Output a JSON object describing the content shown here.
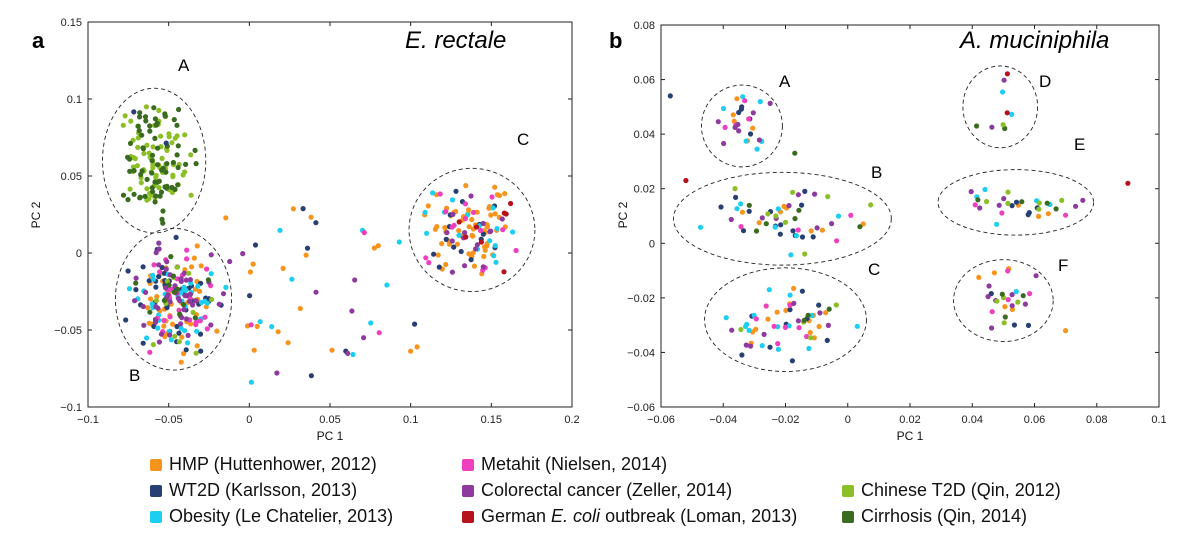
{
  "panels": [
    {
      "label": "a",
      "title": "E. rectale",
      "xlabel": "PC 1",
      "ylabel": "PC 2",
      "xticks": [
        "−0.1",
        "−0.05",
        "0",
        "0.05",
        "0.1",
        "0.15",
        "0.2"
      ],
      "yticks": [
        "0.15",
        "0.1",
        "0.05",
        "0",
        "−0.05",
        "−0.1"
      ],
      "cluster_labels": [
        "A",
        "B",
        "C"
      ]
    },
    {
      "label": "b",
      "title": "A. muciniphila",
      "xlabel": "PC 1",
      "ylabel": "PC 2",
      "xticks": [
        "−0.06",
        "−0.04",
        "−0.02",
        "0",
        "0.02",
        "0.04",
        "0.06",
        "0.08",
        "0.1"
      ],
      "yticks": [
        "0.08",
        "0.06",
        "0.04",
        "0.02",
        "0",
        "−0.02",
        "−0.04",
        "−0.06"
      ],
      "cluster_labels": [
        "A",
        "B",
        "C",
        "D",
        "E",
        "F"
      ]
    }
  ],
  "legend": [
    {
      "label": "HMP (Huttenhower, 2012)",
      "color": "#f7941d"
    },
    {
      "label": "WT2D (Karlsson, 2013)",
      "color": "#283f73"
    },
    {
      "label": "Obesity (Le Chatelier, 2013)",
      "color": "#1ccef0"
    },
    {
      "label": "Metahit (Nielsen, 2014)",
      "color": "#ee3fbe"
    },
    {
      "label": "Colorectal cancer (Zeller, 2014)",
      "color": "#8e3a9e"
    },
    {
      "label": "German E. coli outbreak (Loman, 2013)",
      "color": "#b5121b"
    },
    {
      "label": "Chinese T2D (Qin, 2012)",
      "color": "#8cbf26"
    },
    {
      "label": "Cirrhosis (Qin, 2014)",
      "color": "#3a6b1f"
    }
  ],
  "legend_segments": {
    "german_pre": "German ",
    "german_italic": "E. coli",
    "german_post": " outbreak (Loman, 2013)"
  },
  "chart_data": [
    {
      "type": "scatter",
      "title": "E. rectale",
      "xlabel": "PC 1",
      "ylabel": "PC 2",
      "xlim": [
        -0.1,
        0.2
      ],
      "ylim": [
        -0.1,
        0.15
      ],
      "grid": false,
      "clusters": [
        {
          "name": "A",
          "center": [
            -0.059,
            0.06
          ],
          "radii": [
            0.032,
            0.047
          ],
          "counts": {
            "Chinese T2D (Qin, 2012)": 75,
            "Cirrhosis (Qin, 2014)": 70,
            "WT2D (Karlsson, 2013)": 2
          }
        },
        {
          "name": "B",
          "center": [
            -0.047,
            -0.03
          ],
          "radii": [
            0.036,
            0.046
          ],
          "counts": {
            "HMP (Huttenhower, 2012)": 45,
            "WT2D (Karlsson, 2013)": 45,
            "Obesity (Le Chatelier, 2013)": 35,
            "Metahit (Nielsen, 2014)": 30,
            "Colorectal cancer (Zeller, 2014)": 50,
            "Chinese T2D (Qin, 2012)": 12,
            "Cirrhosis (Qin, 2014)": 12
          }
        },
        {
          "name": "C",
          "center": [
            0.138,
            0.015
          ],
          "radii": [
            0.039,
            0.04
          ],
          "counts": {
            "HMP (Huttenhower, 2012)": 60,
            "WT2D (Karlsson, 2013)": 15,
            "Obesity (Le Chatelier, 2013)": 15,
            "Metahit (Nielsen, 2014)": 15,
            "Colorectal cancer (Zeller, 2014)": 15,
            "German E. coli outbreak (Loman, 2013)": 8
          }
        }
      ],
      "scattered": {
        "x_range": [
          -0.02,
          0.11
        ],
        "y_range": [
          -0.085,
          0.03
        ],
        "counts": {
          "HMP (Huttenhower, 2012)": 18,
          "Obesity (Le Chatelier, 2013)": 12,
          "WT2D (Karlsson, 2013)": 8,
          "Colorectal cancer (Zeller, 2014)": 8,
          "Metahit (Nielsen, 2014)": 3
        }
      }
    },
    {
      "type": "scatter",
      "title": "A. muciniphila",
      "xlabel": "PC 1",
      "ylabel": "PC 2",
      "xlim": [
        -0.06,
        0.1
      ],
      "ylim": [
        -0.06,
        0.08
      ],
      "grid": false,
      "clusters": [
        {
          "name": "A",
          "center": [
            -0.034,
            0.043
          ],
          "radii": [
            0.013,
            0.015
          ],
          "counts": {
            "HMP (Huttenhower, 2012)": 5,
            "WT2D (Karlsson, 2013)": 5,
            "Obesity (Le Chatelier, 2013)": 6,
            "Metahit (Nielsen, 2014)": 4,
            "Colorectal cancer (Zeller, 2014)": 8
          }
        },
        {
          "name": "B",
          "center": [
            -0.021,
            0.009
          ],
          "radii": [
            0.035,
            0.017
          ],
          "counts": {
            "HMP (Huttenhower, 2012)": 8,
            "WT2D (Karlsson, 2013)": 14,
            "Obesity (Le Chatelier, 2013)": 8,
            "Metahit (Nielsen, 2014)": 4,
            "Colorectal cancer (Zeller, 2014)": 8,
            "Chinese T2D (Qin, 2012)": 8,
            "Cirrhosis (Qin, 2014)": 6
          }
        },
        {
          "name": "C",
          "center": [
            -0.02,
            -0.028
          ],
          "radii": [
            0.026,
            0.019
          ],
          "counts": {
            "HMP (Huttenhower, 2012)": 14,
            "WT2D (Karlsson, 2013)": 10,
            "Obesity (Le Chatelier, 2013)": 14,
            "Metahit (Nielsen, 2014)": 8,
            "Colorectal cancer (Zeller, 2014)": 8,
            "Chinese T2D (Qin, 2012)": 4,
            "Cirrhosis (Qin, 2014)": 3
          }
        },
        {
          "name": "D",
          "center": [
            0.049,
            0.05
          ],
          "radii": [
            0.012,
            0.015
          ],
          "counts": {
            "Obesity (Le Chatelier, 2013)": 2,
            "Colorectal cancer (Zeller, 2014)": 2,
            "German E. coli outbreak (Loman, 2013)": 2,
            "Cirrhosis (Qin, 2014)": 2,
            "Chinese T2D (Qin, 2012)": 1
          }
        },
        {
          "name": "E",
          "center": [
            0.054,
            0.015
          ],
          "radii": [
            0.025,
            0.012
          ],
          "counts": {
            "HMP (Huttenhower, 2012)": 3,
            "WT2D (Karlsson, 2013)": 5,
            "Obesity (Le Chatelier, 2013)": 5,
            "Metahit (Nielsen, 2014)": 3,
            "Colorectal cancer (Zeller, 2014)": 6,
            "Chinese T2D (Qin, 2012)": 6,
            "Cirrhosis (Qin, 2014)": 4
          }
        },
        {
          "name": "F",
          "center": [
            0.05,
            -0.021
          ],
          "radii": [
            0.016,
            0.015
          ],
          "counts": {
            "HMP (Huttenhower, 2012)": 5,
            "WT2D (Karlsson, 2013)": 3,
            "Obesity (Le Chatelier, 2013)": 1,
            "Metahit (Nielsen, 2014)": 4,
            "Colorectal cancer (Zeller, 2014)": 8,
            "Chinese T2D (Qin, 2012)": 4,
            "Cirrhosis (Qin, 2014)": 3
          }
        }
      ],
      "outliers": [
        {
          "x": -0.057,
          "y": 0.054,
          "group": "WT2D (Karlsson, 2013)"
        },
        {
          "x": -0.052,
          "y": 0.023,
          "group": "German E. coli outbreak (Loman, 2013)"
        },
        {
          "x": 0.09,
          "y": 0.022,
          "group": "German E. coli outbreak (Loman, 2013)"
        },
        {
          "x": 0.07,
          "y": -0.032,
          "group": "HMP (Huttenhower, 2012)"
        },
        {
          "x": -0.017,
          "y": 0.033,
          "group": "Cirrhosis (Qin, 2014)"
        }
      ]
    }
  ]
}
